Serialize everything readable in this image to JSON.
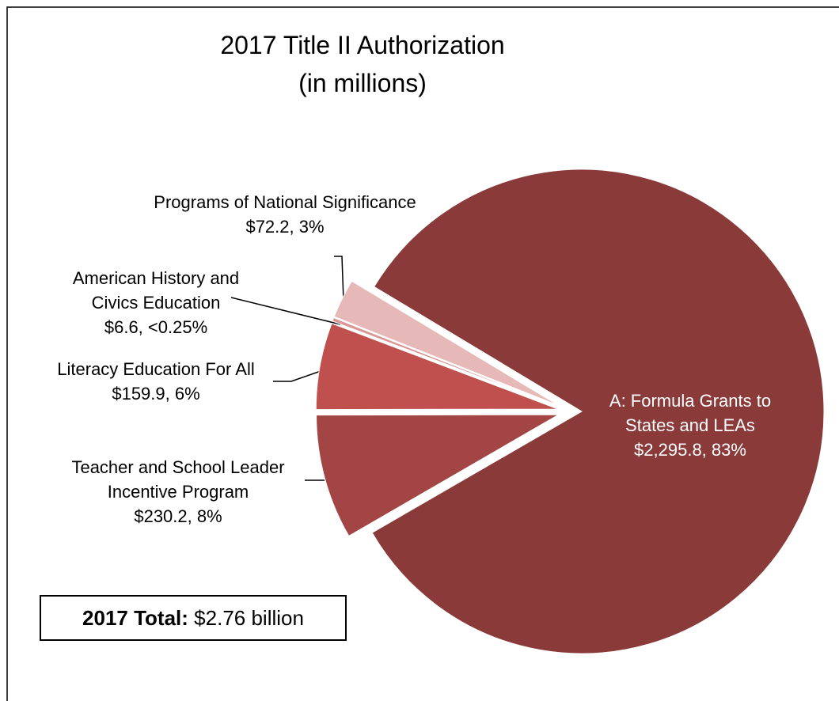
{
  "chart_data": {
    "type": "pie",
    "title": "2017 Title II Authorization",
    "subtitle": "(in millions)",
    "categories": [
      "A: Formula Grants to States and LEAs",
      "Teacher and School Leader Incentive Program",
      "Literacy Education For All",
      "American History and Civics Education",
      "Programs of National Significance"
    ],
    "values": [
      2295.8,
      230.2,
      159.9,
      6.6,
      72.2
    ],
    "value_labels": [
      "$2,295.8, 83%",
      "$230.2, 8%",
      "$159.9, 6%",
      "$6.6, <0.25%",
      "$72.2, 3%"
    ],
    "colors": [
      "#8b3a3a",
      "#a44545",
      "#c0504d",
      "#d99694",
      "#e6b9b8"
    ],
    "annotation": {
      "label": "2017 Total:",
      "text": "$2.76 billion"
    }
  }
}
